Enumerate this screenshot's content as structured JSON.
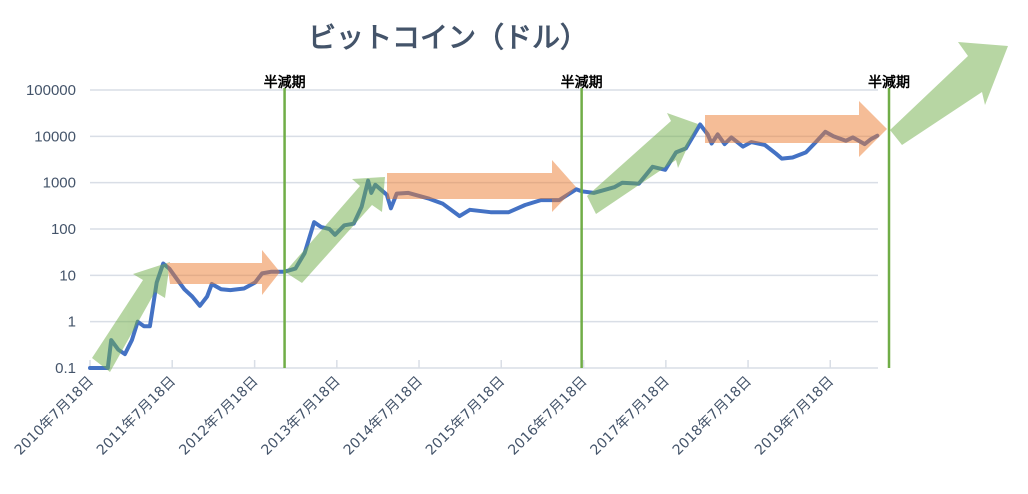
{
  "chart_data": {
    "type": "area",
    "title": "ビットコイン（ドル）",
    "xlabel": "",
    "ylabel": "",
    "y_scale": "log",
    "ylim": [
      0.1,
      100000
    ],
    "yticks": [
      "100000",
      "10000",
      "1000",
      "100",
      "10",
      "1",
      "0.1"
    ],
    "ytick_values": [
      100000,
      10000,
      1000,
      100,
      10,
      1,
      0.1
    ],
    "xlim": [
      "2010-07-18",
      "2020-02-15"
    ],
    "xticks": [
      "2010年7月18日",
      "2011年7月18日",
      "2012年7月18日",
      "2013年7月18日",
      "2014年7月18日",
      "2015年7月18日",
      "2016年7月18日",
      "2017年7月18日",
      "2018年7月18日",
      "2019年7月18日"
    ],
    "xtick_dates": [
      "2010-07-18",
      "2011-07-18",
      "2012-07-18",
      "2013-07-18",
      "2014-07-18",
      "2015-07-18",
      "2016-07-18",
      "2017-07-18",
      "2018-07-18",
      "2019-07-18"
    ],
    "grid": true,
    "series_color": "#4472C4",
    "series": [
      {
        "points": [
          [
            "2010-07-18",
            0.1
          ],
          [
            "2010-10-05",
            0.1
          ],
          [
            "2010-10-20",
            0.4
          ],
          [
            "2010-11-20",
            0.25
          ],
          [
            "2010-12-20",
            0.2
          ],
          [
            "2011-01-20",
            0.4
          ],
          [
            "2011-02-15",
            1.0
          ],
          [
            "2011-03-15",
            0.8
          ],
          [
            "2011-04-10",
            0.8
          ],
          [
            "2011-05-10",
            7
          ],
          [
            "2011-06-08",
            18
          ],
          [
            "2011-07-05",
            14
          ],
          [
            "2011-08-10",
            8
          ],
          [
            "2011-09-10",
            5
          ],
          [
            "2011-10-15",
            3.5
          ],
          [
            "2011-11-18",
            2.2
          ],
          [
            "2011-12-20",
            3.5
          ],
          [
            "2012-01-10",
            6.5
          ],
          [
            "2012-02-20",
            5
          ],
          [
            "2012-04-01",
            4.8
          ],
          [
            "2012-06-01",
            5.2
          ],
          [
            "2012-07-20",
            7
          ],
          [
            "2012-08-20",
            11
          ],
          [
            "2012-10-01",
            12
          ],
          [
            "2012-11-28",
            12
          ],
          [
            "2013-01-15",
            14
          ],
          [
            "2013-02-25",
            30
          ],
          [
            "2013-04-08",
            140
          ],
          [
            "2013-05-10",
            110
          ],
          [
            "2013-06-15",
            100
          ],
          [
            "2013-07-10",
            75
          ],
          [
            "2013-08-20",
            120
          ],
          [
            "2013-10-01",
            130
          ],
          [
            "2013-11-05",
            300
          ],
          [
            "2013-12-04",
            1100
          ],
          [
            "2013-12-18",
            600
          ],
          [
            "2014-01-05",
            900
          ],
          [
            "2014-02-25",
            550
          ],
          [
            "2014-03-15",
            280
          ],
          [
            "2014-04-10",
            580
          ],
          [
            "2014-06-01",
            600
          ],
          [
            "2014-09-01",
            450
          ],
          [
            "2014-11-01",
            350
          ],
          [
            "2015-01-14",
            190
          ],
          [
            "2015-03-01",
            260
          ],
          [
            "2015-06-01",
            230
          ],
          [
            "2015-08-20",
            230
          ],
          [
            "2015-11-01",
            330
          ],
          [
            "2016-01-10",
            420
          ],
          [
            "2016-04-01",
            420
          ],
          [
            "2016-06-15",
            720
          ],
          [
            "2016-07-09",
            650
          ],
          [
            "2016-09-01",
            600
          ],
          [
            "2016-12-01",
            800
          ],
          [
            "2017-01-05",
            1000
          ],
          [
            "2017-03-20",
            950
          ],
          [
            "2017-05-20",
            2200
          ],
          [
            "2017-07-15",
            1900
          ],
          [
            "2017-09-01",
            4500
          ],
          [
            "2017-10-15",
            5500
          ],
          [
            "2017-12-17",
            18000
          ],
          [
            "2018-01-20",
            11000
          ],
          [
            "2018-02-06",
            7000
          ],
          [
            "2018-03-05",
            11000
          ],
          [
            "2018-04-05",
            6800
          ],
          [
            "2018-05-05",
            9500
          ],
          [
            "2018-06-25",
            6000
          ],
          [
            "2018-08-01",
            7500
          ],
          [
            "2018-10-01",
            6500
          ],
          [
            "2018-11-20",
            4200
          ],
          [
            "2018-12-15",
            3300
          ],
          [
            "2019-02-01",
            3500
          ],
          [
            "2019-04-01",
            4500
          ],
          [
            "2019-05-15",
            7500
          ],
          [
            "2019-06-26",
            12500
          ],
          [
            "2019-08-01",
            10000
          ],
          [
            "2019-09-25",
            8000
          ],
          [
            "2019-10-26",
            9500
          ],
          [
            "2019-12-18",
            6800
          ],
          [
            "2020-01-15",
            8700
          ],
          [
            "2020-02-12",
            10300
          ]
        ]
      }
    ],
    "annotations": {
      "halving_label": "半減期",
      "halving_dates": [
        "2012-11-28",
        "2016-07-09",
        "2020-05-11"
      ],
      "halving_color": "#70AD47",
      "trend_up_color": "#70AD47",
      "range_color": "#ED7D31"
    }
  }
}
